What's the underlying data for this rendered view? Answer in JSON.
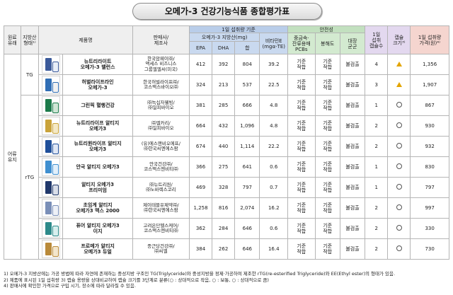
{
  "title": "오메가-3 건강기능식품 종합평가표",
  "headers": {
    "type": "원료\n유래",
    "form": "지방산\n형태¹⁾",
    "product": "제품명",
    "seller": "판매사/\n제조사",
    "content_group": "1일 섭취량 기준",
    "fatty_acid_group": "오메가-3 지방산(mg)",
    "epa": "EPA",
    "dha": "DHA",
    "sum": "합",
    "vitamin_e": "비타민E\n(mgα-TE)",
    "safety": "안전성",
    "pcb": "중금속·\n잔류용매\nPCBs",
    "oxidation": "봉해도",
    "microbes": "대장\n균군",
    "daily_intake": "1일\n섭취\n캡슐수",
    "capsule_size": "캡슐\n크기³⁾",
    "price": "1일 섭취량\n가격(원)⁴⁾"
  },
  "group_labels": {
    "origin": "어류\n유지",
    "tg": "TG",
    "rtg": "rTG"
  },
  "rows": [
    {
      "name": "뉴트리라이트\n오메가-3 밸런스",
      "seller": "한국암웨이㈜/\n액세스 비즈니스\n그룹엘엘씨(미국)",
      "epa": "412",
      "dha": "392",
      "sum": "804",
      "vite": "39.2",
      "pcb": "기준\n적합",
      "ox": "기준\n적합",
      "mic": "불검출",
      "intake": "4",
      "price": "1,356",
      "img": "#3b5a9a",
      "bottle": "#e8eef8"
    },
    {
      "name": "허벌라이프라인\n오메가-3",
      "seller": "한국허벌라이프㈜/\n코스맥스바이오㈜",
      "epa": "324",
      "dha": "213",
      "sum": "537",
      "vite": "22.5",
      "pcb": "기준\n적합",
      "ox": "기준\n적합",
      "mic": "불검출",
      "intake": "3",
      "price": "1,907",
      "img": "#2f6db4",
      "bottle": "#f2f2f2"
    },
    {
      "name": "그린픽 혈행건강",
      "seller": "㈜녹십자웰빙/\n㈜일피바이오",
      "epa": "381",
      "dha": "285",
      "sum": "666",
      "vite": "4.8",
      "pcb": "기준\n적합",
      "ox": "기준\n적합",
      "mic": "불검출",
      "intake": "1",
      "price": "867",
      "img": "#1b7a4a",
      "bottle": "#cfe6d6"
    },
    {
      "name": "뉴트리라이프 알티지\n오메가3",
      "seller": "㈜엘카리/\n㈜일피바이오",
      "epa": "664",
      "dha": "432",
      "sum": "1,096",
      "vite": "4.8",
      "pcb": "기준\n적합",
      "ox": "기준\n적합",
      "mic": "불검출",
      "intake": "2",
      "price": "930",
      "img": "#c9a33a",
      "bottle": "#f4e9c6"
    },
    {
      "name": "뉴트리원라이프 알티지\n오메가3",
      "seller": "(유)에스앤비오에프/\n㈜한국씨엔에스팜",
      "epa": "674",
      "dha": "440",
      "sum": "1,114",
      "vite": "22.2",
      "pcb": "기준\n적합",
      "ox": "기준\n적합",
      "mic": "불검출",
      "intake": "2",
      "price": "932",
      "img": "#1f4f9a",
      "bottle": "#dfe7f5"
    },
    {
      "name": "안국 알티지 오메가3",
      "seller": "안국건강㈜/\n코스맥스엔비티㈜",
      "epa": "366",
      "dha": "275",
      "sum": "641",
      "vite": "0.6",
      "pcb": "기준\n적합",
      "ox": "기준\n적합",
      "mic": "불검출",
      "intake": "1",
      "price": "830",
      "img": "#3f8fd0",
      "bottle": "#e2f0fb"
    },
    {
      "name": "알티지 오메가3\n프리미엄",
      "seller": "㈜뉴트리원/\n㈜노바렉스코리",
      "epa": "469",
      "dha": "328",
      "sum": "797",
      "vite": "0.7",
      "pcb": "기준\n적합",
      "ox": "기준\n적합",
      "mic": "불검출",
      "intake": "1",
      "price": "797",
      "img": "#20386b",
      "bottle": "#d9dee9"
    },
    {
      "name": "초임계 알티지\n오메가3 맥스 2000",
      "seller": "제이테블유제약㈜/\n㈜한국씨엔에스팜",
      "epa": "1,258",
      "dha": "816",
      "sum": "2,074",
      "vite": "16.2",
      "pcb": "기준\n적합",
      "ox": "기준\n적합",
      "mic": "불검출",
      "intake": "2",
      "price": "997",
      "img": "#7a8fb8",
      "bottle": "#eef1f7"
    },
    {
      "name": "퓨어 알티지 오메가3\n이지",
      "seller": "고려은단헬스케어/\n코스맥스엔비티㈜",
      "epa": "362",
      "dha": "284",
      "sum": "646",
      "vite": "0.6",
      "pcb": "기준\n적합",
      "ox": "기준\n적합",
      "mic": "불검출",
      "intake": "2",
      "price": "330",
      "img": "#2d8a8a",
      "bottle": "#d8efee"
    },
    {
      "name": "프로메가 알티지\n오메가3 듀얼",
      "seller": "종근당건강㈜/\n㈜씨엘",
      "epa": "384",
      "dha": "262",
      "sum": "646",
      "vite": "16.4",
      "pcb": "기준\n적합",
      "ox": "기준\n적합",
      "mic": "불검출",
      "intake": "2",
      "price": "730",
      "img": "#b98a3a",
      "bottle": "#f3e6cc"
    }
  ],
  "footnotes": [
    "1) 오메가-3 지방산에는 가공 방법에 따라 자연에 존재하는 중성지방 구조인 TG(Triglyceride)와 중성지방을 정제·가공하여 제조한 rTG(re-esterified Triglyceride)와 EE(Ethyl ester)의 형태가 있음.",
    "2) 제품에 표시된 1일 섭취량  3) 캡슐 용량을 상대비교하여 캡슐 크기를 3단계로 분류(○ : 상대적으로 작음, ○ : 보통, ○ : 상대적으로 큼)",
    "4) 판매사에 확인한 가격으로 구입 시기, 장소에 따라 달라질 수 있음."
  ],
  "colors": {
    "blue_header": "#c9d9ef",
    "green_header": "#d3ead0",
    "purple_header": "#e3d8ef",
    "red_header": "#f5d5cf"
  }
}
